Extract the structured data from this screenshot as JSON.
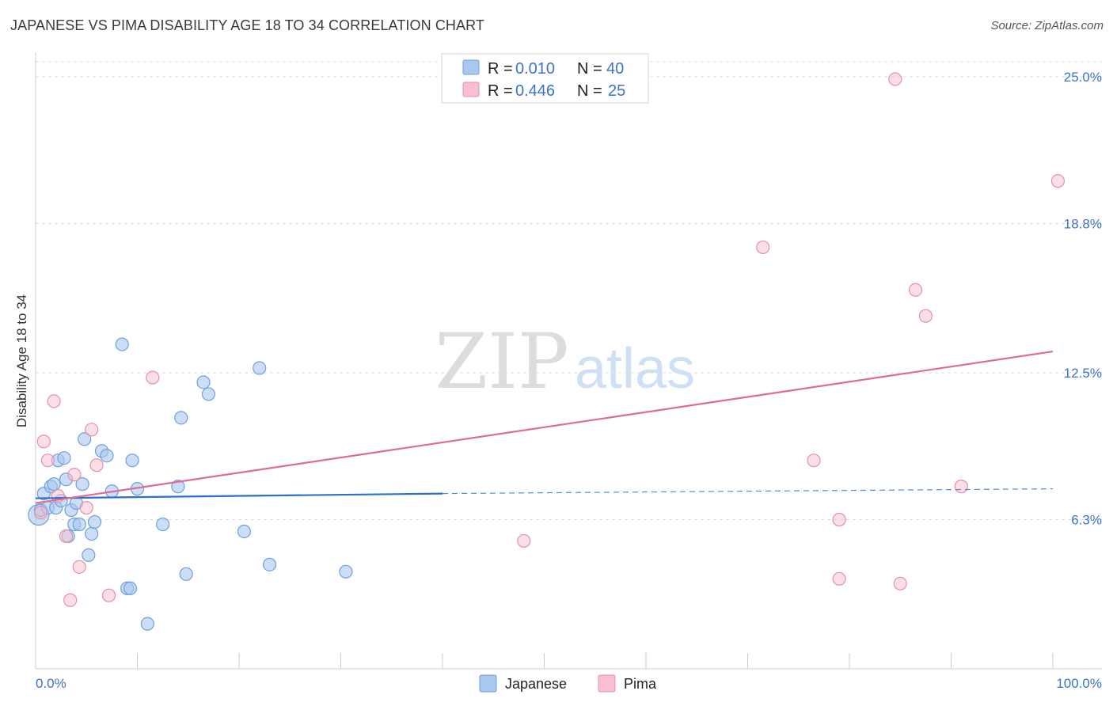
{
  "title": "JAPANESE VS PIMA DISABILITY AGE 18 TO 34 CORRELATION CHART",
  "source": "Source: ZipAtlas.com",
  "colors": {
    "japanese_fill": "#a8c8f0",
    "japanese_stroke": "#6f9fdc",
    "japanese_line": "#2c6fcc",
    "pima_fill": "#f7bfd0",
    "pima_stroke": "#e58fac",
    "pima_line": "#e06b95",
    "tick_text": "#3b73c7"
  },
  "chart_data": {
    "type": "scatter",
    "ylabel": "Disability Age 18 to 34",
    "xlim": [
      0,
      100
    ],
    "ylim": [
      0,
      25.0
    ],
    "x_tick_labels": [
      "0.0%",
      "100.0%"
    ],
    "y_ticks": [
      {
        "value": 6.3,
        "label": "6.3%"
      },
      {
        "value": 12.5,
        "label": "12.5%"
      },
      {
        "value": 18.8,
        "label": "18.8%"
      },
      {
        "value": 25.0,
        "label": "25.0%"
      }
    ],
    "legend": [
      {
        "name": "Japanese",
        "r_label": "R =",
        "r": "0.010",
        "n_label": "N =",
        "n": "40"
      },
      {
        "name": "Pima",
        "r_label": "R =",
        "r": "0.446",
        "n_label": "N =",
        "n": "25"
      }
    ],
    "series": [
      {
        "name": "Japanese",
        "trend": {
          "x0": 0,
          "y0": 7.2,
          "x1": 40,
          "y1": 7.4,
          "dash_x1": 100,
          "dash_y1": 7.6
        },
        "points": [
          [
            0.3,
            6.5
          ],
          [
            0.5,
            6.7
          ],
          [
            0.8,
            7.4
          ],
          [
            1.2,
            6.8
          ],
          [
            1.5,
            7.7
          ],
          [
            1.8,
            7.8
          ],
          [
            2.0,
            6.8
          ],
          [
            2.2,
            8.8
          ],
          [
            2.5,
            7.1
          ],
          [
            2.8,
            8.9
          ],
          [
            3.0,
            8.0
          ],
          [
            3.2,
            5.6
          ],
          [
            3.5,
            6.7
          ],
          [
            3.8,
            6.1
          ],
          [
            4.0,
            7.0
          ],
          [
            4.3,
            6.1
          ],
          [
            4.6,
            7.8
          ],
          [
            4.8,
            9.7
          ],
          [
            5.2,
            4.8
          ],
          [
            5.5,
            5.7
          ],
          [
            5.8,
            6.2
          ],
          [
            6.5,
            9.2
          ],
          [
            7.0,
            9.0
          ],
          [
            7.5,
            7.5
          ],
          [
            8.5,
            13.7
          ],
          [
            9.0,
            3.4
          ],
          [
            9.3,
            3.4
          ],
          [
            9.5,
            8.8
          ],
          [
            10.0,
            7.6
          ],
          [
            11.0,
            1.9
          ],
          [
            12.5,
            6.1
          ],
          [
            14.0,
            7.7
          ],
          [
            14.3,
            10.6
          ],
          [
            14.8,
            4.0
          ],
          [
            16.5,
            12.1
          ],
          [
            17.0,
            11.6
          ],
          [
            20.5,
            5.8
          ],
          [
            22.0,
            12.7
          ],
          [
            23.0,
            4.4
          ],
          [
            30.5,
            4.1
          ]
        ]
      },
      {
        "name": "Pima",
        "trend": {
          "x0": 0,
          "y0": 7.0,
          "x1": 100,
          "y1": 13.4
        },
        "points": [
          [
            0.5,
            6.6
          ],
          [
            0.8,
            9.6
          ],
          [
            1.2,
            8.8
          ],
          [
            1.8,
            11.3
          ],
          [
            2.2,
            7.3
          ],
          [
            3.0,
            5.6
          ],
          [
            3.4,
            2.9
          ],
          [
            3.8,
            8.2
          ],
          [
            4.3,
            4.3
          ],
          [
            5.0,
            6.8
          ],
          [
            5.5,
            10.1
          ],
          [
            6.0,
            8.6
          ],
          [
            7.2,
            3.1
          ],
          [
            11.5,
            12.3
          ],
          [
            48.0,
            5.4
          ],
          [
            71.5,
            17.8
          ],
          [
            76.5,
            8.8
          ],
          [
            79.0,
            6.3
          ],
          [
            79.0,
            3.8
          ],
          [
            84.5,
            24.9
          ],
          [
            85.0,
            3.6
          ],
          [
            86.5,
            16.0
          ],
          [
            87.5,
            14.9
          ],
          [
            91.0,
            7.7
          ],
          [
            100.5,
            20.6
          ]
        ]
      }
    ]
  },
  "watermark": {
    "zip": "ZIP",
    "atlas": "atlas"
  }
}
